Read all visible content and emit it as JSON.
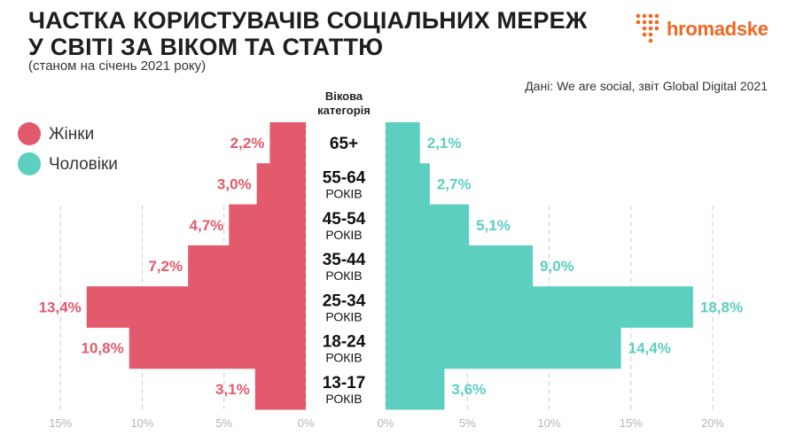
{
  "header": {
    "title_line1": "ЧАСТКА КОРИСТУВАЧІВ СОЦІАЛЬНИХ МЕРЕЖ",
    "title_line2": "У СВІТІ ЗА ВІКОМ ТА СТАТТЮ",
    "subtitle": "(станом на січень 2021 року)",
    "source": "Дані: We are social, звіт Global Digital 2021",
    "logo_text": "hromadske"
  },
  "colors": {
    "women": "#e35a6c",
    "men": "#5ccfc0",
    "logo": "#f26722",
    "grid": "#cccccc",
    "axis_text": "#b5b5b5"
  },
  "chart_data": {
    "type": "bar",
    "orientation": "horizontal-population-pyramid",
    "category_header_line1": "Вікова",
    "category_header_line2": "категорія",
    "categories": [
      {
        "range": "65+",
        "unit": ""
      },
      {
        "range": "55-64",
        "unit": "РОКІВ"
      },
      {
        "range": "45-54",
        "unit": "РОКІВ"
      },
      {
        "range": "35-44",
        "unit": "РОКІВ"
      },
      {
        "range": "25-34",
        "unit": "РОКІВ"
      },
      {
        "range": "18-24",
        "unit": "РОКІВ"
      },
      {
        "range": "13-17",
        "unit": "РОКІВ"
      }
    ],
    "series": [
      {
        "name": "Жінки",
        "side": "left",
        "values": [
          2.2,
          3.0,
          4.7,
          7.2,
          13.4,
          10.8,
          3.1
        ],
        "labels": [
          "2,2%",
          "3,0%",
          "4,7%",
          "7,2%",
          "13,4%",
          "10,8%",
          "3,1%"
        ]
      },
      {
        "name": "Чоловіки",
        "side": "right",
        "values": [
          2.1,
          2.7,
          5.1,
          9.0,
          18.8,
          14.4,
          3.6
        ],
        "labels": [
          "2,1%",
          "2,7%",
          "5,1%",
          "9,0%",
          "18,8%",
          "14,4%",
          "3,6%"
        ]
      }
    ],
    "left_axis": {
      "range": [
        0,
        15
      ],
      "ticks": [
        15,
        10,
        5,
        0
      ],
      "tick_labels": [
        "15%",
        "10%",
        "5%",
        "0%"
      ]
    },
    "right_axis": {
      "range": [
        0,
        20
      ],
      "ticks": [
        0,
        5,
        10,
        15,
        20
      ],
      "tick_labels": [
        "0%",
        "5%",
        "10%",
        "15%",
        "20%"
      ]
    },
    "grid": true,
    "legend_position": "top-left"
  }
}
